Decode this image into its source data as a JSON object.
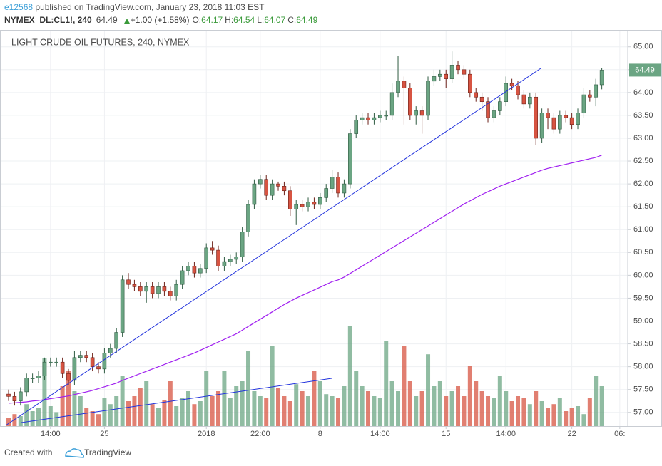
{
  "header": {
    "user": "e12568",
    "published": "published on TradingView.com, January 23, 2018 11:03 EST",
    "symbol": "NYMEX_DL:CL1!, 240",
    "last": "64.49",
    "change": "+1.00 (+1.58%)",
    "quote": [
      {
        "label": "O:",
        "value": "64.17"
      },
      {
        "label": "H:",
        "value": "64.54"
      },
      {
        "label": "L:",
        "value": "64.07"
      },
      {
        "label": "C:",
        "value": "64.49"
      }
    ]
  },
  "chart_data": {
    "type": "candlestick",
    "title": "LIGHT CRUDE OIL FUTURES, 240, NYMEX",
    "up_color": "#6ba583",
    "down_color": "#d75442",
    "ma_color": "#a020f0",
    "grid": true,
    "xlim": [
      -1.43,
      103.33
    ],
    "xticks": [
      {
        "value": 7,
        "label": "14:00"
      },
      {
        "value": 16,
        "label": "25"
      },
      {
        "value": 33,
        "label": "2018"
      },
      {
        "value": 42,
        "label": "22:00"
      },
      {
        "value": 52,
        "label": "8"
      },
      {
        "value": 62,
        "label": "14:00"
      },
      {
        "value": 73,
        "label": "15"
      },
      {
        "value": 83,
        "label": "14:00"
      },
      {
        "value": 94,
        "label": "22"
      },
      {
        "value": 102,
        "label": "06:"
      }
    ],
    "ylim": [
      56.7,
      65.37
    ],
    "yticks": [
      {
        "value": 57,
        "label": "57.00"
      },
      {
        "value": 57.5,
        "label": "57.50"
      },
      {
        "value": 58,
        "label": "58.00"
      },
      {
        "value": 58.5,
        "label": "58.50"
      },
      {
        "value": 59,
        "label": "59.00"
      },
      {
        "value": 59.5,
        "label": "59.50"
      },
      {
        "value": 60,
        "label": "60.00"
      },
      {
        "value": 60.5,
        "label": "60.50"
      },
      {
        "value": 61,
        "label": "61.00"
      },
      {
        "value": 61.5,
        "label": "61.50"
      },
      {
        "value": 62,
        "label": "62.00"
      },
      {
        "value": 62.5,
        "label": "62.50"
      },
      {
        "value": 63,
        "label": "63.00"
      },
      {
        "value": 63.5,
        "label": "63.50"
      },
      {
        "value": 64,
        "label": "64.00"
      },
      {
        "value": 64.5,
        "label": "64.50"
      },
      {
        "value": 65,
        "label": "65.00"
      }
    ],
    "open": [
      57.4,
      57.35,
      57.25,
      57.45,
      57.75,
      57.75,
      57.8,
      58.1,
      58.1,
      58.1,
      57.85,
      57.7,
      58.2,
      58.25,
      58.2,
      58.0,
      57.95,
      58.3,
      58.4,
      58.75,
      59.9,
      59.8,
      59.75,
      59.65,
      59.75,
      59.6,
      59.75,
      59.65,
      59.55,
      59.8,
      60.1,
      60.2,
      60.05,
      60.15,
      60.6,
      60.55,
      60.2,
      60.3,
      60.35,
      60.4,
      60.95,
      61.55,
      62.0,
      62.1,
      61.75,
      62.0,
      61.95,
      61.85,
      61.45,
      61.55,
      61.5,
      61.6,
      61.55,
      61.7,
      61.9,
      62.15,
      61.8,
      62.0,
      63.1,
      63.4,
      63.45,
      63.4,
      63.45,
      63.5,
      63.5,
      64.0,
      64.25,
      64.1,
      63.5,
      63.6,
      63.5,
      64.25,
      64.35,
      64.4,
      64.3,
      64.6,
      64.5,
      64.4,
      64.0,
      63.9,
      63.8,
      63.45,
      63.6,
      63.8,
      64.2,
      64.15,
      63.95,
      63.75,
      63.9,
      63.0,
      63.55,
      63.45,
      63.2,
      63.5,
      63.45,
      63.3,
      63.55,
      63.95,
      63.9,
      64.17
    ],
    "high": [
      57.5,
      57.45,
      57.55,
      57.85,
      57.85,
      57.9,
      58.2,
      58.2,
      58.2,
      58.2,
      57.95,
      58.35,
      58.35,
      58.35,
      58.3,
      58.1,
      58.4,
      58.5,
      58.85,
      60.0,
      60.05,
      59.9,
      59.85,
      59.85,
      59.85,
      59.85,
      59.85,
      59.75,
      59.9,
      60.2,
      60.3,
      60.3,
      60.25,
      60.7,
      60.75,
      60.65,
      60.4,
      60.45,
      60.5,
      61.05,
      61.65,
      62.1,
      62.2,
      62.2,
      62.1,
      62.05,
      62.05,
      61.95,
      61.65,
      61.65,
      61.7,
      61.7,
      61.8,
      62.0,
      62.3,
      62.25,
      62.1,
      63.2,
      63.5,
      63.55,
      63.55,
      63.55,
      63.6,
      63.6,
      64.2,
      64.8,
      64.35,
      64.2,
      63.7,
      63.7,
      64.35,
      64.5,
      64.5,
      64.5,
      64.9,
      64.7,
      64.6,
      64.5,
      64.1,
      64.0,
      63.9,
      63.7,
      63.9,
      64.35,
      64.3,
      64.25,
      64.05,
      64.0,
      64.0,
      63.65,
      63.65,
      63.55,
      63.6,
      63.6,
      63.55,
      63.65,
      64.1,
      64.05,
      64.3,
      64.54
    ],
    "low": [
      57.25,
      57.15,
      57.15,
      57.35,
      57.65,
      57.65,
      57.7,
      58.0,
      58.0,
      57.75,
      57.6,
      57.6,
      58.1,
      58.1,
      57.9,
      57.85,
      57.85,
      58.2,
      58.3,
      58.65,
      59.7,
      59.65,
      59.55,
      59.4,
      59.5,
      59.5,
      59.55,
      59.45,
      59.45,
      59.7,
      60.0,
      59.95,
      59.95,
      60.05,
      60.45,
      60.1,
      60.1,
      60.2,
      60.25,
      60.3,
      60.85,
      61.45,
      61.9,
      61.65,
      61.65,
      61.85,
      61.75,
      61.3,
      61.1,
      61.4,
      61.4,
      61.45,
      61.45,
      61.6,
      61.8,
      61.7,
      61.7,
      61.9,
      63.0,
      63.3,
      63.3,
      63.3,
      63.35,
      63.4,
      63.4,
      63.9,
      63.3,
      63.4,
      63.3,
      63.1,
      63.4,
      64.15,
      64.25,
      64.1,
      64.2,
      64.4,
      64.3,
      63.9,
      63.8,
      63.6,
      63.35,
      63.35,
      63.5,
      63.7,
      64.05,
      63.85,
      63.65,
      63.65,
      62.85,
      62.9,
      63.2,
      63.1,
      63.1,
      63.35,
      63.2,
      63.2,
      63.45,
      63.8,
      63.7,
      64.07
    ],
    "close": [
      57.35,
      57.25,
      57.45,
      57.75,
      57.75,
      57.8,
      58.1,
      58.1,
      58.1,
      57.85,
      57.7,
      58.2,
      58.25,
      58.2,
      58.0,
      57.95,
      58.3,
      58.4,
      58.75,
      59.9,
      59.8,
      59.75,
      59.65,
      59.75,
      59.6,
      59.75,
      59.65,
      59.55,
      59.8,
      60.1,
      60.2,
      60.05,
      60.15,
      60.6,
      60.55,
      60.2,
      60.3,
      60.35,
      60.4,
      60.95,
      61.55,
      62.0,
      62.1,
      61.75,
      62.0,
      61.95,
      61.85,
      61.45,
      61.55,
      61.5,
      61.6,
      61.55,
      61.7,
      61.9,
      62.15,
      61.8,
      62.0,
      63.1,
      63.4,
      63.45,
      63.4,
      63.45,
      63.5,
      63.5,
      64.0,
      64.25,
      64.1,
      63.5,
      63.6,
      63.5,
      64.25,
      64.35,
      64.4,
      64.3,
      64.6,
      64.5,
      64.4,
      64.0,
      63.9,
      63.8,
      63.45,
      63.6,
      63.8,
      64.2,
      64.15,
      63.95,
      63.75,
      63.9,
      63.0,
      63.55,
      63.45,
      63.2,
      63.5,
      63.45,
      63.3,
      63.55,
      63.95,
      63.9,
      64.17,
      64.49
    ],
    "volume": [
      8,
      12,
      10,
      22,
      15,
      18,
      68,
      20,
      14,
      40,
      55,
      35,
      30,
      18,
      15,
      12,
      28,
      22,
      30,
      50,
      25,
      30,
      38,
      45,
      22,
      18,
      26,
      45,
      20,
      28,
      35,
      22,
      25,
      55,
      30,
      35,
      55,
      28,
      40,
      45,
      75,
      35,
      30,
      28,
      80,
      38,
      30,
      25,
      42,
      35,
      30,
      55,
      45,
      32,
      30,
      28,
      40,
      100,
      55,
      40,
      35,
      30,
      28,
      85,
      45,
      35,
      80,
      45,
      30,
      35,
      72,
      40,
      45,
      30,
      35,
      40,
      30,
      60,
      45,
      35,
      30,
      28,
      50,
      35,
      25,
      30,
      28,
      22,
      35,
      25,
      18,
      22,
      28,
      15,
      18,
      20,
      12,
      28,
      50,
      40
    ],
    "ma": [
      57.2,
      57.21,
      57.22,
      57.23,
      57.25,
      57.26,
      57.28,
      57.3,
      57.32,
      57.34,
      57.36,
      57.39,
      57.42,
      57.45,
      57.48,
      57.52,
      57.56,
      57.6,
      57.64,
      57.7,
      57.75,
      57.8,
      57.85,
      57.9,
      57.95,
      58.0,
      58.05,
      58.1,
      58.15,
      58.2,
      58.25,
      58.3,
      58.36,
      58.42,
      58.48,
      58.54,
      58.6,
      58.66,
      58.72,
      58.8,
      58.88,
      58.96,
      59.04,
      59.12,
      59.2,
      59.28,
      59.36,
      59.43,
      59.5,
      59.56,
      59.62,
      59.68,
      59.74,
      59.8,
      59.86,
      59.9,
      59.96,
      60.04,
      60.12,
      60.2,
      60.28,
      60.36,
      60.44,
      60.52,
      60.6,
      60.68,
      60.76,
      60.84,
      60.92,
      61.0,
      61.08,
      61.16,
      61.24,
      61.32,
      61.4,
      61.48,
      61.56,
      61.63,
      61.7,
      61.77,
      61.83,
      61.89,
      61.95,
      62.0,
      62.05,
      62.1,
      62.15,
      62.2,
      62.25,
      62.3,
      62.34,
      62.37,
      62.4,
      62.43,
      62.46,
      62.49,
      62.52,
      62.55,
      62.58,
      62.63
    ]
  },
  "footer": {
    "created": "Created with",
    "brand": "TradingView"
  }
}
